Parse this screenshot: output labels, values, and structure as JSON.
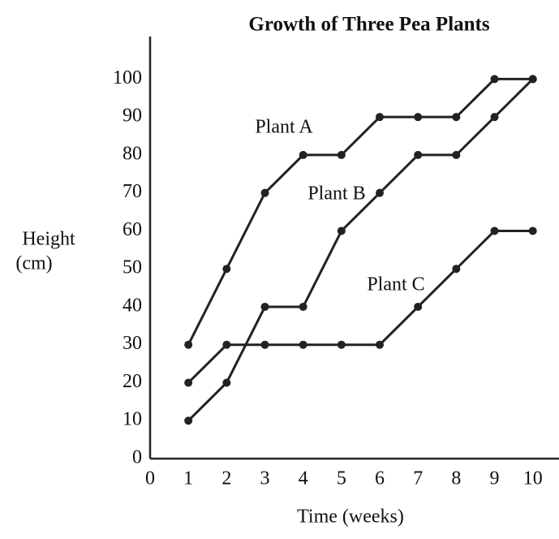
{
  "chart_data": {
    "type": "line",
    "title": "Growth of Three Pea Plants",
    "xlabel": "Time (weeks)",
    "ylabel": [
      "Height",
      "(cm)"
    ],
    "annotations": [
      "Plant A",
      "Plant B",
      "Plant C"
    ],
    "x": [
      1,
      2,
      3,
      4,
      5,
      6,
      7,
      8,
      9,
      10
    ],
    "series": [
      {
        "name": "Plant A",
        "color": "#222222",
        "values": [
          30,
          50,
          70,
          80,
          80,
          90,
          90,
          90,
          100,
          100
        ]
      },
      {
        "name": "Plant B",
        "color": "#222222",
        "values": [
          10,
          20,
          40,
          40,
          60,
          70,
          80,
          80,
          90,
          100
        ]
      },
      {
        "name": "Plant C",
        "color": "#222222",
        "values": [
          20,
          30,
          30,
          30,
          30,
          30,
          40,
          50,
          60,
          60
        ]
      }
    ],
    "xlim": [
      0,
      10.6
    ],
    "xticks": [
      0,
      1,
      2,
      3,
      4,
      5,
      6,
      7,
      8,
      9,
      10
    ],
    "ylim": [
      0,
      108
    ],
    "yticks": [
      0,
      10,
      20,
      30,
      40,
      50,
      60,
      70,
      80,
      90,
      100
    ],
    "grid": false,
    "legend": false
  }
}
